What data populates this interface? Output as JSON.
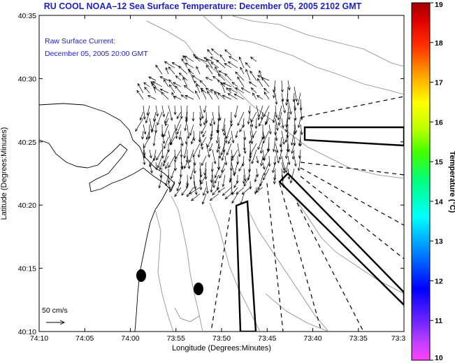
{
  "title": "RU COOL   NOAA–12  Sea Surface Temperature:  December 05, 2005 2102 GMT",
  "info": {
    "line1": "Raw Surface Current:",
    "line2": "December 05, 2005 20:00 GMT"
  },
  "axes": {
    "xlabel": "Longitude (Degrees:Minutes)",
    "ylabel": "Latitude (Degrees:Minutes)",
    "x_ticks": [
      "74:10",
      "74:05",
      "74:00",
      "73:55",
      "73:50",
      "73:45",
      "73:40",
      "73:35",
      "73:3"
    ],
    "y_ticks": [
      "40:35",
      "40:30",
      "40:25",
      "40:20",
      "40:15",
      "40:10"
    ]
  },
  "scale": {
    "label": "50 cm/s"
  },
  "colorbar": {
    "label": "Temperature (°C)",
    "min": 10,
    "max": 19,
    "ticks": [
      "19",
      "18",
      "17",
      "16",
      "15",
      "14",
      "13",
      "12",
      "11",
      "10"
    ]
  },
  "colors": {
    "title": "#1f1fbf",
    "land": "#ffffff",
    "contour": "#888888"
  }
}
